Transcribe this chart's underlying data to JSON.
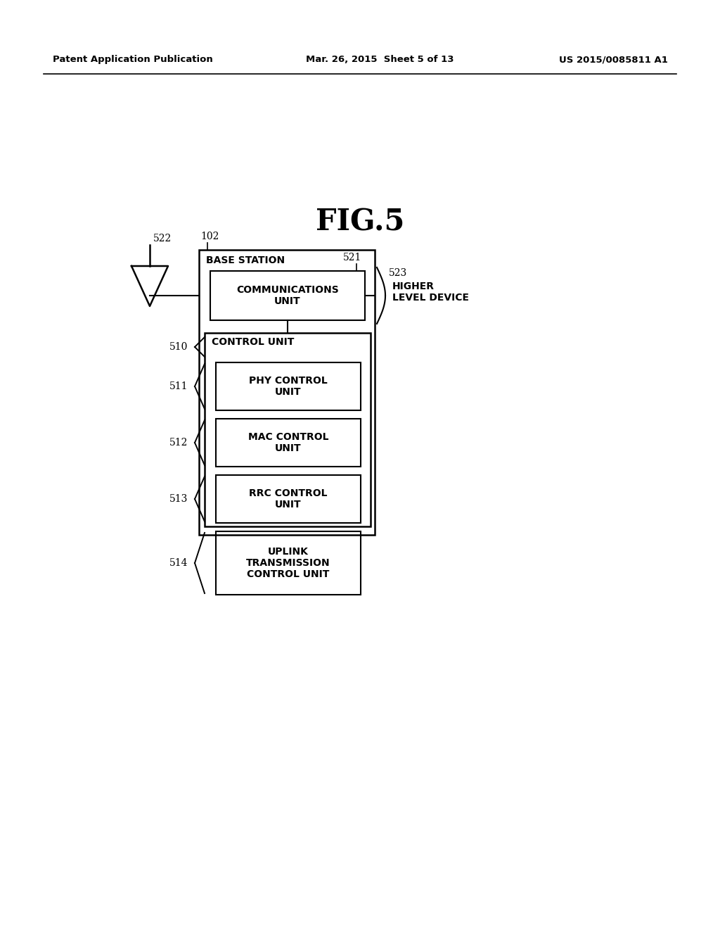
{
  "bg_color": "#ffffff",
  "header_left": "Patent Application Publication",
  "header_mid": "Mar. 26, 2015  Sheet 5 of 13",
  "header_right": "US 2015/0085811 A1",
  "fig_title": "FIG.5",
  "labels": {
    "522": "522",
    "102": "102",
    "521": "521",
    "523": "523",
    "510": "510",
    "511": "511",
    "512": "512",
    "513": "513",
    "514": "514"
  },
  "box_texts": {
    "base_station": "BASE STATION",
    "comm_unit": "COMMUNICATIONS\nUNIT",
    "control_unit": "CONTROL UNIT",
    "phy": "PHY CONTROL\nUNIT",
    "mac": "MAC CONTROL\nUNIT",
    "rrc": "RRC CONTROL\nUNIT",
    "uplink": "UPLINK\nTRANSMISSION\nCONTROL UNIT"
  },
  "higher_level": "HIGHER\nLEVEL DEVICE"
}
